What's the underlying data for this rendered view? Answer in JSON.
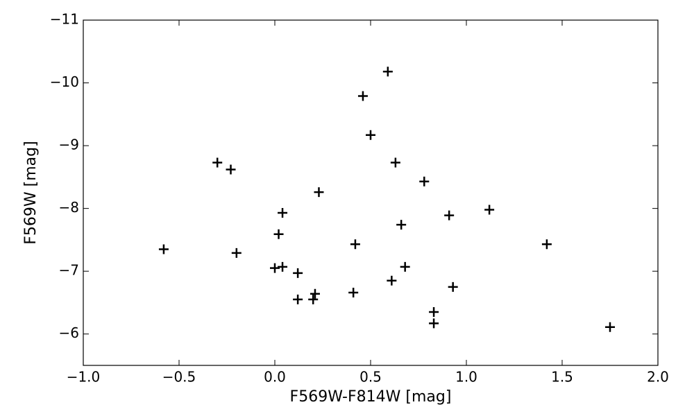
{
  "chart_data": {
    "type": "scatter",
    "x_label": "F569W-F814W [mag]",
    "y_label": "F569W [mag]",
    "x": [
      -0.58,
      -0.3,
      -0.23,
      -0.2,
      0.0,
      0.02,
      0.04,
      0.04,
      0.12,
      0.12,
      0.2,
      0.21,
      0.23,
      0.41,
      0.42,
      0.46,
      0.5,
      0.59,
      0.63,
      0.61,
      0.66,
      0.68,
      0.78,
      0.83,
      0.83,
      0.91,
      0.93,
      1.12,
      1.42,
      1.75
    ],
    "y": [
      -7.35,
      -8.73,
      -8.62,
      -7.29,
      -7.05,
      -7.59,
      -7.93,
      -7.07,
      -6.97,
      -6.55,
      -6.55,
      -6.64,
      -8.26,
      -6.66,
      -7.43,
      -9.79,
      -9.17,
      -10.18,
      -8.73,
      -6.85,
      -7.74,
      -7.07,
      -8.43,
      -6.35,
      -6.17,
      -7.89,
      -6.75,
      -7.98,
      -7.43,
      -6.11
    ],
    "color": "#000000",
    "marker": "plus",
    "xlim": [
      -1.0,
      2.0
    ],
    "ylim": [
      -5.5,
      -11
    ],
    "xticks": [
      {
        "value": -1.0,
        "label": "−1.0"
      },
      {
        "value": -0.5,
        "label": "−0.5"
      },
      {
        "value": 0.0,
        "label": "0.0"
      },
      {
        "value": 0.5,
        "label": "0.5"
      },
      {
        "value": 1.0,
        "label": "1.0"
      },
      {
        "value": 1.5,
        "label": "1.5"
      },
      {
        "value": 2.0,
        "label": "2.0"
      }
    ],
    "yticks": [
      {
        "value": -6,
        "label": "−6"
      },
      {
        "value": -7,
        "label": "−7"
      },
      {
        "value": -8,
        "label": "−8"
      },
      {
        "value": -9,
        "label": "−9"
      },
      {
        "value": -10,
        "label": "−10"
      },
      {
        "value": -11,
        "label": "−11"
      }
    ],
    "grid": false
  }
}
